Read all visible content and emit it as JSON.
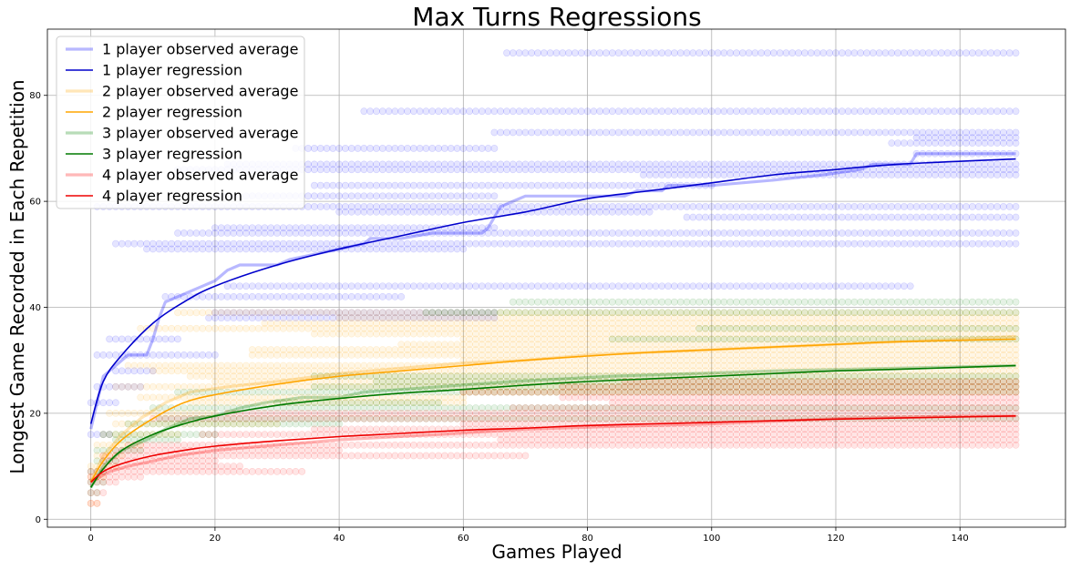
{
  "chart_data": {
    "type": "line",
    "title": "Max Turns Regressions",
    "xlabel": "Games Played",
    "ylabel": "Longest Game Recorded in Each Repetition",
    "xlim": [
      -7,
      157
    ],
    "ylim": [
      -1.5,
      92.5
    ],
    "xticks": [
      0,
      20,
      40,
      60,
      80,
      100,
      120,
      140
    ],
    "yticks": [
      0,
      20,
      40,
      60,
      80
    ],
    "grid": true,
    "legend_position": "top-left",
    "groups": [
      {
        "color": "#0000ff",
        "observed_name": "1 player observed average",
        "regression_name": "1 player regression",
        "regression_color": "#0000cc",
        "regression": [
          [
            0,
            18
          ],
          [
            2,
            26
          ],
          [
            5,
            31
          ],
          [
            10,
            37
          ],
          [
            15,
            41
          ],
          [
            20,
            44
          ],
          [
            30,
            48
          ],
          [
            40,
            51
          ],
          [
            50,
            53.5
          ],
          [
            60,
            56
          ],
          [
            70,
            58
          ],
          [
            80,
            60.5
          ],
          [
            90,
            62
          ],
          [
            100,
            63.5
          ],
          [
            110,
            65
          ],
          [
            120,
            66
          ],
          [
            130,
            67
          ],
          [
            149,
            68
          ]
        ],
        "observed": [
          [
            0,
            17
          ],
          [
            1,
            22
          ],
          [
            2,
            27
          ],
          [
            4,
            29
          ],
          [
            6,
            31
          ],
          [
            9,
            31
          ],
          [
            10,
            34
          ],
          [
            11,
            38
          ],
          [
            12,
            41
          ],
          [
            14,
            42
          ],
          [
            18,
            44
          ],
          [
            20,
            45
          ],
          [
            21,
            46
          ],
          [
            22,
            47
          ],
          [
            24,
            48
          ],
          [
            30,
            48
          ],
          [
            32,
            49
          ],
          [
            36,
            50
          ],
          [
            40,
            51
          ],
          [
            44,
            52
          ],
          [
            45,
            53
          ],
          [
            50,
            53
          ],
          [
            55,
            54
          ],
          [
            63,
            54
          ],
          [
            64,
            55
          ],
          [
            65,
            57
          ],
          [
            66,
            59
          ],
          [
            68,
            60
          ],
          [
            70,
            61
          ],
          [
            86,
            61
          ],
          [
            88,
            62
          ],
          [
            92,
            62
          ],
          [
            93,
            63
          ],
          [
            100,
            63
          ],
          [
            110,
            64
          ],
          [
            118,
            65
          ],
          [
            124,
            66
          ],
          [
            126,
            67
          ],
          [
            132,
            67
          ],
          [
            133,
            69
          ],
          [
            149,
            69
          ]
        ],
        "scatter_levels": [
          {
            "y": 88,
            "from": 67,
            "to": 149
          },
          {
            "y": 77,
            "from": 44,
            "to": 149
          },
          {
            "y": 73,
            "from": 65,
            "to": 149
          },
          {
            "y": 72,
            "from": 133,
            "to": 149
          },
          {
            "y": 71,
            "from": 129,
            "to": 149
          },
          {
            "y": 70,
            "from": 33,
            "to": 65
          },
          {
            "y": 69,
            "from": 133,
            "to": 149
          },
          {
            "y": 67,
            "from": 22,
            "to": 149
          },
          {
            "y": 66,
            "from": 14,
            "to": 149
          },
          {
            "y": 65,
            "from": 89,
            "to": 149
          },
          {
            "y": 63,
            "from": 36,
            "to": 100
          },
          {
            "y": 61,
            "from": 20,
            "to": 65
          },
          {
            "y": 59,
            "from": 1,
            "to": 149
          },
          {
            "y": 58,
            "from": 40,
            "to": 90
          },
          {
            "y": 57,
            "from": 96,
            "to": 149
          },
          {
            "y": 55,
            "from": 20,
            "to": 65
          },
          {
            "y": 54,
            "from": 14,
            "to": 149
          },
          {
            "y": 52,
            "from": 4,
            "to": 149
          },
          {
            "y": 51,
            "from": 9,
            "to": 60
          },
          {
            "y": 44,
            "from": 22,
            "to": 132
          },
          {
            "y": 42,
            "from": 12,
            "to": 50
          },
          {
            "y": 39,
            "from": 20,
            "to": 65
          },
          {
            "y": 38,
            "from": 19,
            "to": 65
          },
          {
            "y": 34,
            "from": 3,
            "to": 14
          },
          {
            "y": 31,
            "from": 1,
            "to": 20
          },
          {
            "y": 28,
            "from": 4,
            "to": 10
          },
          {
            "y": 25,
            "from": 1,
            "to": 8
          },
          {
            "y": 22,
            "from": 0,
            "to": 4
          },
          {
            "y": 16,
            "from": 0,
            "to": 3
          }
        ]
      },
      {
        "color": "#ffa500",
        "observed_name": "2 player observed average",
        "regression_name": "2 player regression",
        "regression_color": "#ffa500",
        "regression": [
          [
            0,
            7
          ],
          [
            2,
            11
          ],
          [
            5,
            15
          ],
          [
            10,
            19
          ],
          [
            15,
            22
          ],
          [
            20,
            23.5
          ],
          [
            30,
            25.5
          ],
          [
            40,
            27
          ],
          [
            50,
            28
          ],
          [
            60,
            29
          ],
          [
            70,
            30
          ],
          [
            80,
            30.8
          ],
          [
            90,
            31.5
          ],
          [
            100,
            32
          ],
          [
            110,
            32.5
          ],
          [
            120,
            33
          ],
          [
            130,
            33.5
          ],
          [
            149,
            34
          ]
        ],
        "observed": [
          [
            0,
            7
          ],
          [
            2,
            12
          ],
          [
            5,
            16
          ],
          [
            8,
            19
          ],
          [
            12,
            22
          ],
          [
            16,
            24
          ],
          [
            22,
            25
          ],
          [
            30,
            26
          ],
          [
            40,
            27.5
          ],
          [
            50,
            28.5
          ],
          [
            60,
            29.5
          ],
          [
            70,
            30
          ],
          [
            80,
            31
          ],
          [
            100,
            32
          ],
          [
            120,
            33
          ],
          [
            140,
            34
          ],
          [
            149,
            34.5
          ]
        ],
        "scatter_levels": [
          {
            "y": 39,
            "from": 14,
            "to": 149
          },
          {
            "y": 38,
            "from": 40,
            "to": 149
          },
          {
            "y": 37,
            "from": 28,
            "to": 149
          },
          {
            "y": 36,
            "from": 8,
            "to": 149
          },
          {
            "y": 35,
            "from": 36,
            "to": 149
          },
          {
            "y": 34,
            "from": 60,
            "to": 149
          },
          {
            "y": 33,
            "from": 50,
            "to": 149
          },
          {
            "y": 32,
            "from": 26,
            "to": 149
          },
          {
            "y": 31,
            "from": 26,
            "to": 149
          },
          {
            "y": 30,
            "from": 60,
            "to": 149
          },
          {
            "y": 29,
            "from": 6,
            "to": 149
          },
          {
            "y": 28,
            "from": 10,
            "to": 149
          },
          {
            "y": 27,
            "from": 16,
            "to": 149
          },
          {
            "y": 26,
            "from": 20,
            "to": 149
          },
          {
            "y": 25,
            "from": 4,
            "to": 149
          },
          {
            "y": 24,
            "from": 60,
            "to": 149
          },
          {
            "y": 23,
            "from": 8,
            "to": 60
          },
          {
            "y": 22,
            "from": 16,
            "to": 60
          },
          {
            "y": 20,
            "from": 3,
            "to": 20
          },
          {
            "y": 18,
            "from": 4,
            "to": 30
          },
          {
            "y": 16,
            "from": 2,
            "to": 14
          },
          {
            "y": 14,
            "from": 1,
            "to": 8
          },
          {
            "y": 12,
            "from": 1,
            "to": 5
          },
          {
            "y": 10,
            "from": 0,
            "to": 4
          },
          {
            "y": 8,
            "from": 0,
            "to": 2
          },
          {
            "y": 3,
            "from": 0,
            "to": 1
          }
        ]
      },
      {
        "color": "#008000",
        "observed_name": "3 player observed average",
        "regression_name": "3 player regression",
        "regression_color": "#007a00",
        "regression": [
          [
            0,
            6
          ],
          [
            2,
            9.5
          ],
          [
            5,
            13
          ],
          [
            10,
            16
          ],
          [
            15,
            18
          ],
          [
            20,
            19.5
          ],
          [
            30,
            21.5
          ],
          [
            40,
            22.8
          ],
          [
            50,
            23.8
          ],
          [
            60,
            24.5
          ],
          [
            70,
            25.3
          ],
          [
            80,
            26
          ],
          [
            90,
            26.5
          ],
          [
            100,
            27
          ],
          [
            110,
            27.5
          ],
          [
            120,
            28
          ],
          [
            130,
            28.3
          ],
          [
            149,
            29
          ]
        ],
        "observed": [
          [
            0,
            6
          ],
          [
            2,
            10
          ],
          [
            5,
            13
          ],
          [
            9,
            15
          ],
          [
            12,
            17
          ],
          [
            16,
            19
          ],
          [
            20,
            19.5
          ],
          [
            24,
            21
          ],
          [
            28,
            22
          ],
          [
            34,
            23
          ],
          [
            40,
            23
          ],
          [
            44,
            24
          ],
          [
            56,
            25
          ],
          [
            68,
            26
          ],
          [
            84,
            27
          ],
          [
            110,
            28
          ],
          [
            149,
            29
          ]
        ],
        "scatter_levels": [
          {
            "y": 41,
            "from": 68,
            "to": 149
          },
          {
            "y": 39,
            "from": 54,
            "to": 149
          },
          {
            "y": 36,
            "from": 98,
            "to": 149
          },
          {
            "y": 34,
            "from": 84,
            "to": 149
          },
          {
            "y": 27,
            "from": 36,
            "to": 149
          },
          {
            "y": 26,
            "from": 46,
            "to": 149
          },
          {
            "y": 25,
            "from": 36,
            "to": 149
          },
          {
            "y": 24,
            "from": 14,
            "to": 149
          },
          {
            "y": 22,
            "from": 30,
            "to": 56
          },
          {
            "y": 21,
            "from": 10,
            "to": 149
          },
          {
            "y": 19,
            "from": 11,
            "to": 149
          },
          {
            "y": 18,
            "from": 6,
            "to": 40
          },
          {
            "y": 16,
            "from": 2,
            "to": 20
          },
          {
            "y": 15,
            "from": 4,
            "to": 14
          },
          {
            "y": 13,
            "from": 1,
            "to": 8
          },
          {
            "y": 11,
            "from": 1,
            "to": 4
          },
          {
            "y": 9,
            "from": 0,
            "to": 2
          },
          {
            "y": 7,
            "from": 0,
            "to": 2
          },
          {
            "y": 5,
            "from": 0,
            "to": 1
          }
        ]
      },
      {
        "color": "#ff0000",
        "observed_name": "4 player observed average",
        "regression_name": "4 player regression",
        "regression_color": "#ee0000",
        "regression": [
          [
            0,
            7
          ],
          [
            2,
            9
          ],
          [
            5,
            10.5
          ],
          [
            10,
            12
          ],
          [
            15,
            13
          ],
          [
            20,
            13.8
          ],
          [
            30,
            14.8
          ],
          [
            40,
            15.6
          ],
          [
            50,
            16.2
          ],
          [
            60,
            16.8
          ],
          [
            70,
            17.2
          ],
          [
            80,
            17.7
          ],
          [
            90,
            18
          ],
          [
            100,
            18.3
          ],
          [
            110,
            18.6
          ],
          [
            120,
            18.9
          ],
          [
            130,
            19.1
          ],
          [
            149,
            19.5
          ]
        ],
        "observed": [
          [
            0,
            7
          ],
          [
            3,
            9
          ],
          [
            6,
            10
          ],
          [
            10,
            11
          ],
          [
            14,
            12
          ],
          [
            20,
            13
          ],
          [
            30,
            14
          ],
          [
            40,
            15
          ],
          [
            56,
            16
          ],
          [
            70,
            17
          ],
          [
            84,
            17.5
          ],
          [
            100,
            18
          ],
          [
            120,
            19
          ],
          [
            140,
            19.5
          ],
          [
            149,
            19.5
          ]
        ],
        "scatter_levels": [
          {
            "y": 26,
            "from": 86,
            "to": 149
          },
          {
            "y": 25,
            "from": 76,
            "to": 149
          },
          {
            "y": 24,
            "from": 60,
            "to": 149
          },
          {
            "y": 23,
            "from": 76,
            "to": 149
          },
          {
            "y": 22,
            "from": 84,
            "to": 149
          },
          {
            "y": 21,
            "from": 68,
            "to": 149
          },
          {
            "y": 20,
            "from": 22,
            "to": 149
          },
          {
            "y": 19,
            "from": 10,
            "to": 149
          },
          {
            "y": 18,
            "from": 60,
            "to": 149
          },
          {
            "y": 17,
            "from": 36,
            "to": 149
          },
          {
            "y": 16,
            "from": 18,
            "to": 149
          },
          {
            "y": 15,
            "from": 66,
            "to": 149
          },
          {
            "y": 14,
            "from": 6,
            "to": 149
          },
          {
            "y": 13,
            "from": 4,
            "to": 40
          },
          {
            "y": 12,
            "from": 2,
            "to": 70
          },
          {
            "y": 11,
            "from": 2,
            "to": 20
          },
          {
            "y": 10,
            "from": 2,
            "to": 24
          },
          {
            "y": 9,
            "from": 0,
            "to": 34
          },
          {
            "y": 8,
            "from": 0,
            "to": 8
          },
          {
            "y": 7,
            "from": 0,
            "to": 4
          },
          {
            "y": 5,
            "from": 0,
            "to": 2
          },
          {
            "y": 3,
            "from": 0,
            "to": 1
          }
        ]
      }
    ]
  }
}
